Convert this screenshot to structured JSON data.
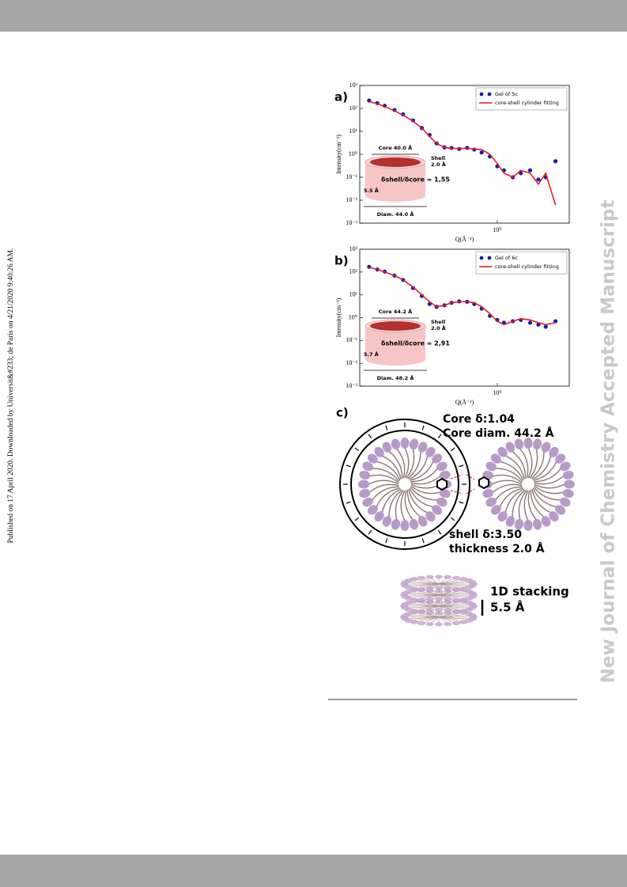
{
  "sidebar": "Published on 17 April 2020. Downloaded by Universit&#233; de Paris on 4/21/2020 9:40:26 AM.",
  "watermark": "New Journal of Chemistry Accepted Manuscript",
  "chart_data": [
    {
      "type": "scatter",
      "panel": "a)",
      "x_label": "Q(Å⁻¹)",
      "y_label": "Intensity(cm⁻¹)",
      "log_x": true,
      "log_y": true,
      "legend": "upper right",
      "xlim": [
        0.14,
        2.8
      ],
      "ylim": [
        0.001,
        1000
      ],
      "xticks": [
        {
          "value": 1,
          "label": "10⁰"
        }
      ],
      "yticks": [
        {
          "value": 1000,
          "label": "10³"
        },
        {
          "value": 100,
          "label": "10²"
        },
        {
          "value": 10,
          "label": "10¹"
        },
        {
          "value": 1,
          "label": "10⁰"
        },
        {
          "value": 0.1,
          "label": "10⁻¹"
        },
        {
          "value": 0.01,
          "label": "10⁻²"
        },
        {
          "value": 0.001,
          "label": "10⁻³"
        }
      ],
      "x": [
        0.16,
        0.18,
        0.2,
        0.23,
        0.26,
        0.3,
        0.34,
        0.38,
        0.42,
        0.47,
        0.52,
        0.58,
        0.65,
        0.72,
        0.8,
        0.9,
        1.0,
        1.1,
        1.25,
        1.4,
        1.6,
        1.8,
        2.0,
        2.3
      ],
      "series": [
        {
          "name": "Gel of 5c",
          "style": "scatter",
          "color": "#1c1ca8",
          "values": [
            220,
            170,
            130,
            85,
            55,
            30,
            14,
            7,
            3,
            2,
            1.9,
            1.7,
            1.9,
            1.6,
            1.2,
            0.8,
            0.3,
            0.2,
            0.1,
            0.15,
            0.2,
            0.08,
            0.1,
            0.5
          ]
        },
        {
          "name": "core-shell cylinder fitting",
          "style": "line",
          "color": "#e02020",
          "values": [
            200,
            160,
            120,
            80,
            50,
            28,
            14,
            6,
            3,
            2,
            1.8,
            1.8,
            1.8,
            1.7,
            1.6,
            1.0,
            0.4,
            0.15,
            0.1,
            0.2,
            0.15,
            0.05,
            0.15,
            0.006
          ]
        }
      ],
      "inset": {
        "core": "Core 40.0 Å",
        "shell": "Shell",
        "shell_size": "2.0 Å",
        "ratio": "δshell/δcore = 1,55",
        "height": "5.5 Å",
        "diameter": "Diam. 44.0 Å"
      }
    },
    {
      "type": "scatter",
      "panel": "b)",
      "x_label": "Q(Å⁻¹)",
      "y_label": "Intensity(cm⁻¹)",
      "log_x": true,
      "log_y": true,
      "legend": "upper right",
      "xlim": [
        0.14,
        2.8
      ],
      "ylim": [
        0.001,
        1000
      ],
      "xticks": [
        {
          "value": 1,
          "label": "10⁰"
        }
      ],
      "yticks": [
        {
          "value": 1000,
          "label": "10³"
        },
        {
          "value": 100,
          "label": "10²"
        },
        {
          "value": 10,
          "label": "10¹"
        },
        {
          "value": 1,
          "label": "10⁰"
        },
        {
          "value": 0.1,
          "label": "10⁻¹"
        },
        {
          "value": 0.01,
          "label": "10⁻²"
        },
        {
          "value": 0.001,
          "label": "10⁻³"
        }
      ],
      "x": [
        0.16,
        0.18,
        0.2,
        0.23,
        0.26,
        0.3,
        0.34,
        0.38,
        0.42,
        0.47,
        0.52,
        0.58,
        0.65,
        0.72,
        0.8,
        0.9,
        1.0,
        1.1,
        1.25,
        1.4,
        1.6,
        1.8,
        2.0,
        2.3
      ],
      "series": [
        {
          "name": "Gel of 6c",
          "style": "scatter",
          "color": "#1c1ca8",
          "values": [
            170,
            130,
            105,
            70,
            45,
            20,
            9,
            4,
            3,
            3.5,
            4.5,
            5.2,
            5,
            4,
            2.5,
            1.2,
            0.8,
            0.6,
            0.7,
            0.8,
            0.6,
            0.5,
            0.4,
            0.7
          ]
        },
        {
          "name": "core-shell cylinder fitting",
          "style": "line",
          "color": "#e02020",
          "values": [
            160,
            130,
            100,
            70,
            45,
            22,
            10,
            5,
            3,
            3.5,
            4.5,
            5,
            5,
            4.5,
            3,
            1.5,
            0.7,
            0.5,
            0.7,
            0.9,
            0.8,
            0.6,
            0.5,
            0.6
          ]
        }
      ],
      "inset": {
        "core": "Core 44.2 Å",
        "shell": "Shell",
        "shell_size": "2.0 Å",
        "ratio": "δshell/δcore = 2,91",
        "height": "5.7 Å",
        "diameter": "Diam. 48.2 Å"
      }
    }
  ],
  "panel_c": {
    "label": "c)",
    "core_delta": "Core δ:1.04",
    "core_diam": "Core diam. 44.2 Å",
    "shell_delta": "shell δ:3.50",
    "shell_thickness": "thickness 2.0 Å",
    "stacking": "1D stacking",
    "stacking_dist": "5.5 Å"
  }
}
